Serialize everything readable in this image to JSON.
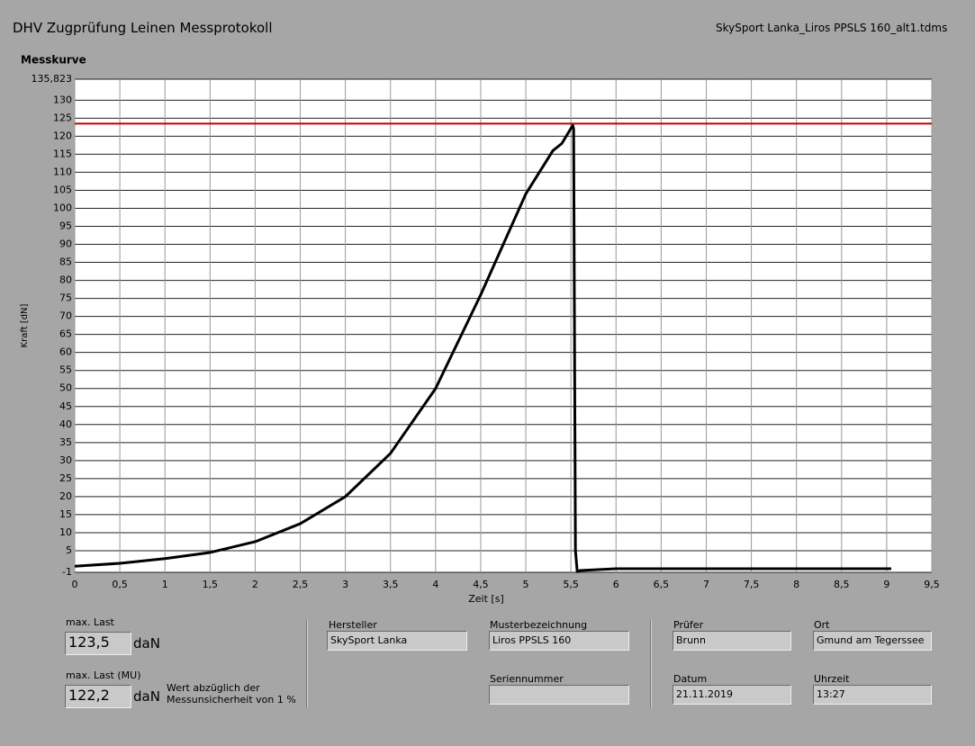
{
  "header": {
    "title": "DHV Zugprüfung Leinen Messprotokoll",
    "file": "SkySport Lanka_Liros PPSLS 160_alt1.tdms"
  },
  "chart_data": {
    "type": "line",
    "title": "Messkurve",
    "x_label": "Zeit [s]",
    "y_label": "Kraft [dN]",
    "x": [
      0,
      0.5,
      1,
      1.5,
      2,
      2.5,
      3,
      3.5,
      4,
      4.5,
      5,
      5.3,
      5.4,
      5.52,
      5.53,
      5.55,
      5.57,
      5.6,
      6,
      7,
      8,
      9.05
    ],
    "values": [
      0.7,
      1.5,
      2.8,
      4.5,
      7.5,
      12.5,
      20,
      32,
      50,
      76,
      104,
      116,
      118,
      123,
      122,
      5,
      -0.8,
      -0.5,
      0,
      0,
      0,
      0
    ],
    "color": "#000000",
    "reference_line": {
      "value": 123.5,
      "color": "#c00000"
    },
    "xlim": [
      0,
      9.5
    ],
    "xticks": [
      0,
      {
        "value": 0.5,
        "label": "0,5"
      },
      1,
      {
        "value": 1.5,
        "label": "1,5"
      },
      2,
      {
        "value": 2.5,
        "label": "2,5"
      },
      3,
      {
        "value": 3.5,
        "label": "3,5"
      },
      4,
      {
        "value": 4.5,
        "label": "4,5"
      },
      5,
      {
        "value": 5.5,
        "label": "5,5"
      },
      6,
      {
        "value": 6.5,
        "label": "6,5"
      },
      7,
      {
        "value": 7.5,
        "label": "7,5"
      },
      8,
      {
        "value": 8.5,
        "label": "8,5"
      },
      9,
      {
        "value": 9.5,
        "label": "9,5"
      }
    ],
    "ylim": [
      -1,
      135.823
    ],
    "yticks": [
      -1,
      5,
      10,
      15,
      20,
      25,
      30,
      35,
      40,
      45,
      50,
      55,
      60,
      65,
      70,
      75,
      80,
      85,
      90,
      95,
      100,
      105,
      110,
      115,
      120,
      125,
      130,
      {
        "value": 135.823,
        "label": "135,823"
      }
    ],
    "grid": true
  },
  "fields": {
    "max_last": {
      "label": "max. Last",
      "value": "123,5",
      "unit": "daN"
    },
    "max_last_mu": {
      "label": "max. Last (MU)",
      "value": "122,2",
      "unit": "daN",
      "note": "Wert abzüglich der Messunsicherheit von 1 %"
    },
    "hersteller": {
      "label": "Hersteller",
      "value": "SkySport Lanka"
    },
    "musterbezeichnung": {
      "label": "Musterbezeichnung",
      "value": "Liros PPSLS 160"
    },
    "seriennummer": {
      "label": "Seriennummer"
    },
    "pruefer": {
      "label": "Prüfer",
      "value": "Brunn"
    },
    "ort": {
      "label": "Ort",
      "value": "Gmund am Tegerssee"
    },
    "datum": {
      "label": "Datum",
      "value": "21.11.2019"
    },
    "uhrzeit": {
      "label": "Uhrzeit",
      "value": "13:27"
    }
  }
}
